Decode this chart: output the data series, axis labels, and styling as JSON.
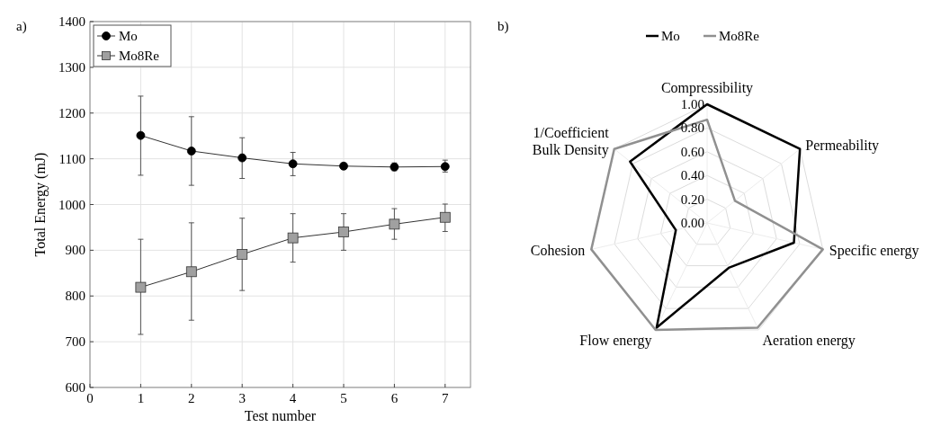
{
  "chart_data": [
    {
      "type": "line",
      "xlabel": "Test number",
      "ylabel": "Total Energy (mJ)",
      "annotations": [
        "a)"
      ],
      "x": [
        1,
        2,
        3,
        4,
        5,
        6,
        7
      ],
      "series": [
        {
          "name": "Mo",
          "color": "#000000",
          "marker": "circle",
          "values": [
            1151,
            1117,
            1102,
            1089,
            1084,
            1082,
            1083
          ],
          "errors": [
            [
              1064,
              1237
            ],
            [
              1042,
              1192
            ],
            [
              1057,
              1146
            ],
            [
              1063,
              1114
            ],
            [
              1078,
              1090
            ],
            [
              1074,
              1091
            ],
            [
              1071,
              1097
            ]
          ]
        },
        {
          "name": "Mo8Re",
          "color": "#a0a0a0",
          "marker": "square",
          "values": [
            819,
            853,
            891,
            927,
            940,
            957,
            972
          ],
          "errors": [
            [
              716,
              924
            ],
            [
              747,
              960
            ],
            [
              812,
              970
            ],
            [
              874,
              980
            ],
            [
              900,
              980
            ],
            [
              924,
              991
            ],
            [
              941,
              1001
            ]
          ]
        }
      ],
      "xlim": [
        0,
        7.5
      ],
      "xticks": [
        0,
        1,
        2,
        3,
        4,
        5,
        6,
        7
      ],
      "ylim": [
        600,
        1400
      ],
      "yticks": [
        600,
        700,
        800,
        900,
        1000,
        1100,
        1200,
        1300,
        1400
      ],
      "grid": true,
      "legend": "top left"
    },
    {
      "type": "radar",
      "annotations": [
        "b)"
      ],
      "categories": [
        "Compressibility",
        "Permeability",
        "Specific energy",
        "Aeration energy",
        "Flow energy",
        "Cohesion",
        "1/Coefficient\nBulk Density"
      ],
      "series": [
        {
          "name": "Mo",
          "color": "#000000",
          "values": [
            1.0,
            1.0,
            0.75,
            0.42,
            0.98,
            0.27,
            0.83
          ]
        },
        {
          "name": "Mo8Re",
          "color": "#909090",
          "values": [
            0.87,
            0.3,
            1.0,
            0.98,
            1.0,
            1.0,
            1.0
          ]
        }
      ],
      "ylim": [
        0,
        1
      ],
      "yticks": [
        {
          "value": 0,
          "label": "0.00"
        },
        {
          "value": 0.2,
          "label": "0.20"
        },
        {
          "value": 0.4,
          "label": "0.40"
        },
        {
          "value": 0.6,
          "label": "0.60"
        },
        {
          "value": 0.8,
          "label": "0.80"
        },
        {
          "value": 1,
          "label": "1.00"
        }
      ],
      "grid": true,
      "legend": "top"
    }
  ]
}
